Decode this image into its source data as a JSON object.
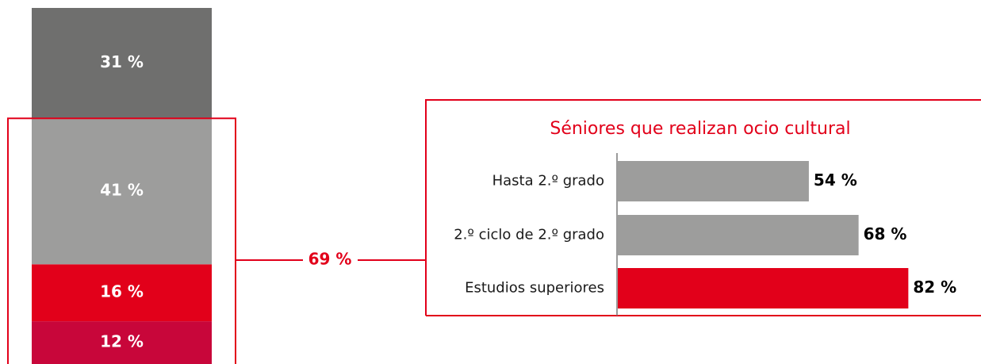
{
  "chart_data": [
    {
      "type": "stacked-column",
      "series": [
        {
          "color": "#c8063a",
          "values": [
            12
          ],
          "value_labels": [
            "12 %"
          ]
        },
        {
          "color": "#e2001a",
          "values": [
            16
          ],
          "value_labels": [
            "16 %"
          ]
        },
        {
          "color": "#9d9d9c",
          "values": [
            41
          ],
          "value_labels": [
            "41 %"
          ]
        },
        {
          "color": "#6f6f6e",
          "values": [
            31
          ],
          "value_labels": [
            "31 %"
          ]
        }
      ],
      "ylim": [
        0,
        100
      ],
      "annotation": "69 %"
    },
    {
      "type": "hbar",
      "title": "Séniores que realizan ocio cultural",
      "categories": [
        "Hasta 2.º grado",
        "2.º ciclo de 2.º grado",
        "Estudios superiores"
      ],
      "values": [
        54,
        68,
        82
      ],
      "value_labels": [
        "54 %",
        "68 %",
        "82 %"
      ],
      "colors": [
        "#9d9d9c",
        "#9d9d9c",
        "#e2001a"
      ],
      "xlim": [
        0,
        100
      ]
    }
  ]
}
